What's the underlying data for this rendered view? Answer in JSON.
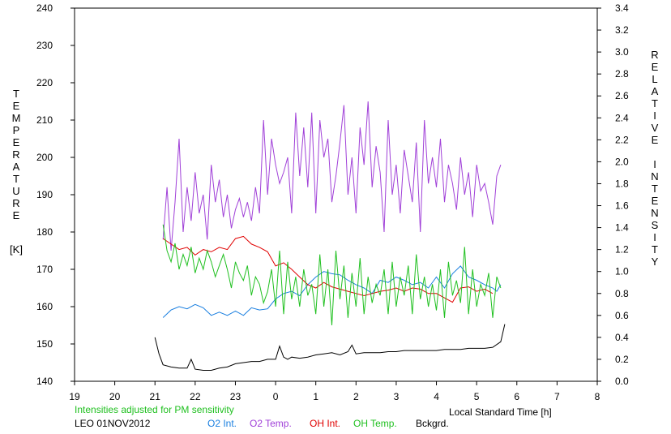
{
  "chart_data": {
    "type": "line",
    "left_axis": {
      "label": "TEMPERATURE",
      "unit": "[K]",
      "ylim": [
        140,
        240
      ],
      "ticks": [
        "140",
        "150",
        "160",
        "170",
        "180",
        "190",
        "200",
        "210",
        "220",
        "230",
        "240"
      ]
    },
    "right_axis": {
      "label": "RELATIVE INTENSITY",
      "ylim": [
        0.0,
        3.4
      ],
      "ticks": [
        "0.0",
        "0.2",
        "0.4",
        "0.6",
        "0.8",
        "1.0",
        "1.2",
        "1.4",
        "1.6",
        "1.8",
        "2.0",
        "2.2",
        "2.4",
        "2.6",
        "2.8",
        "3.0",
        "3.2",
        "3.4"
      ]
    },
    "x_axis": {
      "label": "Local Standard Time [h]",
      "xlim": [
        19,
        32
      ],
      "ticks": [
        "19",
        "20",
        "21",
        "22",
        "23",
        "0",
        "1",
        "2",
        "3",
        "4",
        "5",
        "6",
        "7",
        "8"
      ]
    },
    "note": "Intensities adjusted for PM sensitivity",
    "station": "LEO 01NOV2012",
    "colors": {
      "o2_int": "#1a7fe0",
      "o2_temp": "#a040d8",
      "oh_int": "#e00000",
      "oh_temp": "#20c020",
      "bckgrd": "#000000",
      "note": "#20c020"
    },
    "series": [
      {
        "name": "O2 Int.",
        "key": "o2_int",
        "axis": "right",
        "x": [
          21.2,
          21.4,
          21.6,
          21.8,
          22.0,
          22.2,
          22.4,
          22.6,
          22.8,
          23.0,
          23.2,
          23.4,
          23.6,
          23.8,
          24.0,
          24.2,
          24.4,
          24.6,
          24.8,
          25.0,
          25.2,
          25.4,
          25.6,
          25.8,
          26.0,
          26.2,
          26.4,
          26.6,
          26.8,
          27.0,
          27.2,
          27.4,
          27.6,
          27.8,
          28.0,
          28.2,
          28.4,
          28.6,
          28.8,
          29.0,
          29.2,
          29.4,
          29.5,
          29.6
        ],
        "y": [
          0.58,
          0.65,
          0.68,
          0.66,
          0.7,
          0.67,
          0.6,
          0.63,
          0.6,
          0.64,
          0.6,
          0.67,
          0.65,
          0.66,
          0.75,
          0.8,
          0.82,
          0.78,
          0.88,
          0.95,
          1.0,
          0.98,
          0.97,
          0.92,
          0.88,
          0.85,
          0.8,
          0.92,
          0.9,
          0.95,
          0.92,
          0.88,
          0.9,
          0.85,
          0.95,
          0.85,
          0.98,
          1.05,
          0.95,
          0.92,
          0.88,
          0.85,
          0.82,
          0.88
        ]
      },
      {
        "name": "O2 Temp.",
        "key": "o2_temp",
        "axis": "left",
        "x": [
          21.2,
          21.3,
          21.4,
          21.5,
          21.6,
          21.7,
          21.8,
          21.9,
          22.0,
          22.1,
          22.2,
          22.3,
          22.4,
          22.5,
          22.6,
          22.7,
          22.8,
          22.9,
          23.0,
          23.1,
          23.2,
          23.3,
          23.4,
          23.5,
          23.6,
          23.7,
          23.8,
          23.9,
          24.0,
          24.1,
          24.2,
          24.3,
          24.4,
          24.5,
          24.6,
          24.7,
          24.8,
          24.9,
          25.0,
          25.1,
          25.2,
          25.3,
          25.4,
          25.5,
          25.6,
          25.7,
          25.8,
          25.9,
          26.0,
          26.1,
          26.2,
          26.3,
          26.4,
          26.5,
          26.6,
          26.7,
          26.8,
          26.9,
          27.0,
          27.1,
          27.2,
          27.3,
          27.4,
          27.5,
          27.6,
          27.7,
          27.8,
          27.9,
          28.0,
          28.1,
          28.2,
          28.3,
          28.4,
          28.5,
          28.6,
          28.7,
          28.8,
          28.9,
          29.0,
          29.1,
          29.2,
          29.3,
          29.4,
          29.5,
          29.6
        ],
        "y": [
          178,
          192,
          175,
          188,
          205,
          180,
          192,
          183,
          196,
          185,
          190,
          178,
          198,
          188,
          194,
          184,
          190,
          181,
          186,
          189,
          184,
          188,
          183,
          192,
          185,
          210,
          190,
          205,
          198,
          193,
          196,
          200,
          185,
          212,
          195,
          208,
          192,
          212,
          185,
          210,
          200,
          205,
          188,
          195,
          204,
          214,
          190,
          200,
          185,
          208,
          198,
          215,
          192,
          203,
          196,
          180,
          210,
          190,
          198,
          185,
          202,
          195,
          188,
          204,
          180,
          210,
          193,
          200,
          192,
          205,
          188,
          198,
          193,
          186,
          200,
          190,
          196,
          184,
          198,
          191,
          193,
          188,
          182,
          195,
          198
        ]
      },
      {
        "name": "OH Int.",
        "key": "oh_int",
        "axis": "right",
        "x": [
          21.2,
          21.4,
          21.6,
          21.8,
          22.0,
          22.2,
          22.4,
          22.6,
          22.8,
          23.0,
          23.2,
          23.4,
          23.6,
          23.8,
          24.0,
          24.2,
          24.4,
          24.6,
          24.8,
          25.0,
          25.2,
          25.4,
          25.6,
          25.8,
          26.0,
          26.2,
          26.4,
          26.6,
          26.8,
          27.0,
          27.2,
          27.4,
          27.6,
          27.8,
          28.0,
          28.2,
          28.4,
          28.6,
          28.8,
          29.0,
          29.2,
          29.4
        ],
        "y": [
          1.3,
          1.25,
          1.2,
          1.22,
          1.15,
          1.2,
          1.18,
          1.22,
          1.2,
          1.3,
          1.32,
          1.25,
          1.22,
          1.18,
          1.05,
          1.08,
          1.02,
          0.95,
          0.88,
          0.85,
          0.9,
          0.86,
          0.84,
          0.82,
          0.8,
          0.78,
          0.8,
          0.82,
          0.83,
          0.85,
          0.82,
          0.85,
          0.84,
          0.8,
          0.8,
          0.76,
          0.72,
          0.85,
          0.86,
          0.82,
          0.84,
          0.8
        ]
      },
      {
        "name": "OH Temp.",
        "key": "oh_temp",
        "axis": "left",
        "x": [
          21.2,
          21.3,
          21.4,
          21.5,
          21.6,
          21.7,
          21.8,
          21.9,
          22.0,
          22.1,
          22.2,
          22.3,
          22.4,
          22.5,
          22.6,
          22.7,
          22.8,
          22.9,
          23.0,
          23.1,
          23.2,
          23.3,
          23.4,
          23.5,
          23.6,
          23.7,
          23.8,
          23.9,
          24.0,
          24.1,
          24.2,
          24.3,
          24.4,
          24.5,
          24.6,
          24.7,
          24.8,
          24.9,
          25.0,
          25.1,
          25.2,
          25.3,
          25.4,
          25.5,
          25.6,
          25.7,
          25.8,
          25.9,
          26.0,
          26.1,
          26.2,
          26.3,
          26.4,
          26.5,
          26.6,
          26.7,
          26.8,
          26.9,
          27.0,
          27.1,
          27.2,
          27.3,
          27.4,
          27.5,
          27.6,
          27.7,
          27.8,
          27.9,
          28.0,
          28.1,
          28.2,
          28.3,
          28.4,
          28.5,
          28.6,
          28.7,
          28.8,
          28.9,
          29.0,
          29.1,
          29.2,
          29.3,
          29.4,
          29.5,
          29.6
        ],
        "y": [
          182,
          175,
          172,
          177,
          170,
          174,
          171,
          176,
          169,
          173,
          170,
          175,
          172,
          168,
          171,
          174,
          170,
          165,
          172,
          169,
          167,
          171,
          163,
          168,
          166,
          161,
          164,
          170,
          160,
          175,
          158,
          172,
          162,
          168,
          160,
          170,
          163,
          166,
          158,
          174,
          160,
          170,
          155,
          175,
          162,
          171,
          157,
          169,
          160,
          173,
          158,
          168,
          161,
          166,
          163,
          170,
          158,
          172,
          160,
          168,
          163,
          171,
          158,
          174,
          162,
          168,
          160,
          166,
          159,
          170,
          157,
          172,
          163,
          167,
          161,
          176,
          158,
          170,
          160,
          166,
          163,
          169,
          157,
          168,
          165
        ]
      },
      {
        "name": "Bckgrd.",
        "key": "bckgrd",
        "axis": "right",
        "x": [
          21.0,
          21.1,
          21.2,
          21.4,
          21.6,
          21.8,
          21.9,
          22.0,
          22.2,
          22.4,
          22.6,
          22.8,
          23.0,
          23.2,
          23.4,
          23.6,
          23.8,
          24.0,
          24.1,
          24.2,
          24.3,
          24.4,
          24.6,
          24.8,
          25.0,
          25.2,
          25.4,
          25.6,
          25.8,
          25.9,
          26.0,
          26.2,
          26.4,
          26.6,
          26.8,
          27.0,
          27.2,
          27.4,
          27.6,
          27.8,
          28.0,
          28.2,
          28.4,
          28.6,
          28.8,
          29.0,
          29.2,
          29.4,
          29.6,
          29.7
        ],
        "y": [
          0.4,
          0.25,
          0.15,
          0.13,
          0.12,
          0.12,
          0.2,
          0.11,
          0.1,
          0.1,
          0.12,
          0.13,
          0.16,
          0.17,
          0.18,
          0.18,
          0.2,
          0.2,
          0.32,
          0.22,
          0.2,
          0.22,
          0.21,
          0.22,
          0.24,
          0.25,
          0.26,
          0.24,
          0.27,
          0.33,
          0.25,
          0.26,
          0.26,
          0.26,
          0.27,
          0.27,
          0.28,
          0.28,
          0.28,
          0.28,
          0.28,
          0.29,
          0.29,
          0.29,
          0.3,
          0.3,
          0.3,
          0.31,
          0.36,
          0.52
        ]
      }
    ]
  }
}
